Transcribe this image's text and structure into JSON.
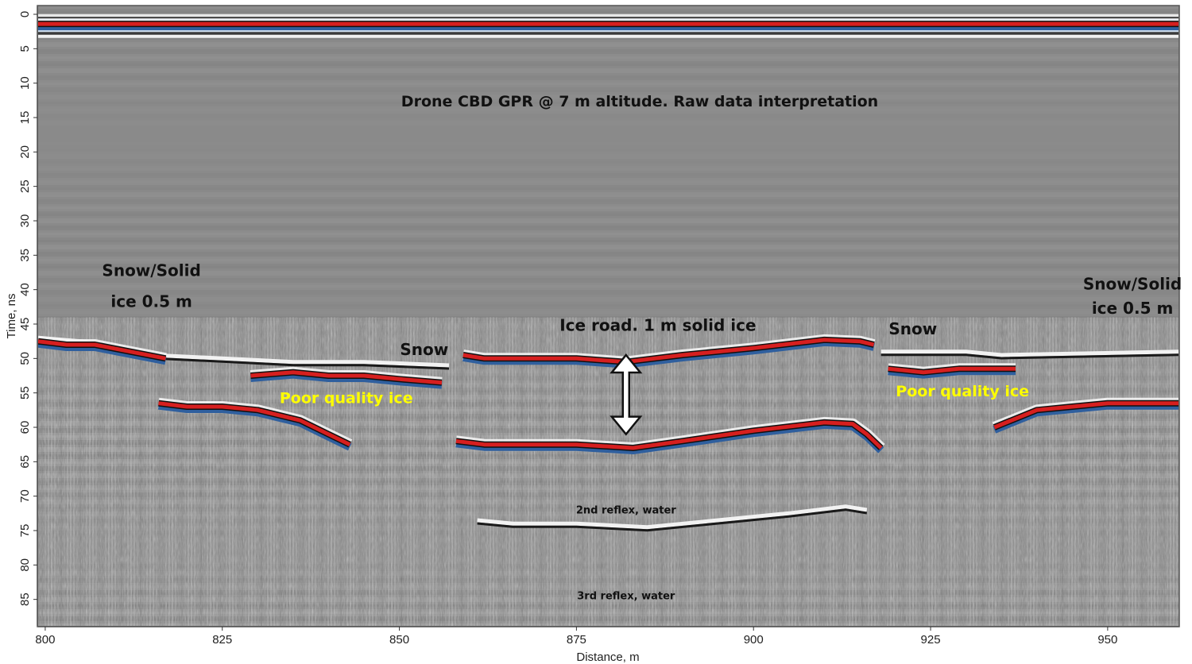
{
  "chart_data": {
    "type": "heatmap",
    "title": "Drone CBD GPR @ 7 m altitude. Raw data interpretation",
    "xlabel": "Distance, m",
    "ylabel": "Time, ns",
    "xlim": [
      799,
      960
    ],
    "ylim": [
      0,
      90
    ],
    "y_inverted": true,
    "x_ticks": [
      800,
      825,
      850,
      875,
      900,
      925,
      950
    ],
    "y_ticks": [
      0,
      5,
      10,
      15,
      20,
      25,
      30,
      35,
      40,
      45,
      50,
      55,
      60,
      65,
      70,
      75,
      80,
      85
    ],
    "colors": {
      "positive": "#d61f1f",
      "negative": "#2f5f9e",
      "neutral": "#8a8a8a",
      "label_dark": "#111111",
      "label_highlight": "#ffff00"
    },
    "annotations": [
      {
        "text": "Snow/Solid",
        "x": 815,
        "y": 38,
        "color": "dark"
      },
      {
        "text": "ice 0.5 m",
        "x": 815,
        "y": 42.5,
        "color": "dark"
      },
      {
        "text": "Snow",
        "x": 853.5,
        "y": 49.5,
        "color": "dark"
      },
      {
        "text": "Ice road. 1 m solid ice",
        "x": 886.5,
        "y": 46,
        "color": "dark"
      },
      {
        "text": "Snow",
        "x": 922.5,
        "y": 46.5,
        "color": "dark"
      },
      {
        "text": "Snow/Solid",
        "x": 953.5,
        "y": 40,
        "color": "dark"
      },
      {
        "text": "ice 0.5 m",
        "x": 953.5,
        "y": 43.5,
        "color": "dark"
      },
      {
        "text": "Poor quality ice",
        "x": 842.5,
        "y": 56.5,
        "color": "highlight"
      },
      {
        "text": "Poor quality ice",
        "x": 929.5,
        "y": 55.5,
        "color": "highlight"
      },
      {
        "text": "2nd reflex, water",
        "x": 882,
        "y": 72.5,
        "color": "dark",
        "small": true
      },
      {
        "text": "3rd reflex, water",
        "x": 882,
        "y": 85,
        "color": "dark",
        "small": true
      }
    ],
    "thickness_arrow": {
      "x": 882,
      "y_from": 49.5,
      "y_to": 61
    },
    "series": [
      {
        "x": [
          799,
          860,
          900,
          960
        ],
        "y": [
          1.4,
          1.4,
          1.4,
          1.4
        ],
        "polarity": "positive"
      },
      {
        "x": [
          859,
          862,
          875,
          882,
          890,
          900,
          910,
          915,
          917
        ],
        "y": [
          49.5,
          50,
          50,
          50.5,
          49.5,
          48.5,
          47.3,
          47.5,
          48
        ],
        "polarity": "positive"
      },
      {
        "x": [
          858,
          862,
          875,
          883,
          890,
          900,
          910,
          914,
          916,
          918
        ],
        "y": [
          62,
          62.5,
          62.5,
          63,
          62,
          60.5,
          59.3,
          59.5,
          61,
          63
        ],
        "polarity": "positive"
      },
      {
        "x": [
          861,
          866,
          875,
          885,
          895,
          905,
          913,
          916
        ],
        "y": [
          73.5,
          74,
          74,
          74.5,
          73.5,
          72.5,
          71.5,
          72
        ],
        "polarity": "neutral"
      },
      {
        "x": [
          799,
          805,
          815,
          825,
          835,
          845,
          857
        ],
        "y": [
          47,
          47.5,
          49.5,
          50,
          50.5,
          50.5,
          51
        ],
        "polarity": "neutral"
      },
      {
        "x": [
          799,
          803,
          807,
          812,
          817
        ],
        "y": [
          47.5,
          48,
          48,
          49,
          50
        ],
        "polarity": "positive"
      },
      {
        "x": [
          829,
          835,
          840,
          845,
          850,
          856
        ],
        "y": [
          52.5,
          52,
          52.5,
          52.5,
          53,
          53.5
        ],
        "polarity": "positive"
      },
      {
        "x": [
          816,
          820,
          825,
          830,
          836,
          840,
          843
        ],
        "y": [
          56.5,
          57,
          57,
          57.5,
          59,
          61,
          62.5
        ],
        "polarity": "positive"
      },
      {
        "x": [
          918,
          924,
          930,
          935,
          960
        ],
        "y": [
          49,
          49,
          49,
          49.5,
          49
        ],
        "polarity": "neutral"
      },
      {
        "x": [
          919,
          924,
          929,
          933,
          937
        ],
        "y": [
          51.5,
          52,
          51.5,
          51.5,
          51.5
        ],
        "polarity": "positive"
      },
      {
        "x": [
          934,
          940,
          945,
          950,
          955,
          960
        ],
        "y": [
          60,
          57.5,
          57,
          56.5,
          56.5,
          56.5
        ],
        "polarity": "positive"
      }
    ]
  }
}
